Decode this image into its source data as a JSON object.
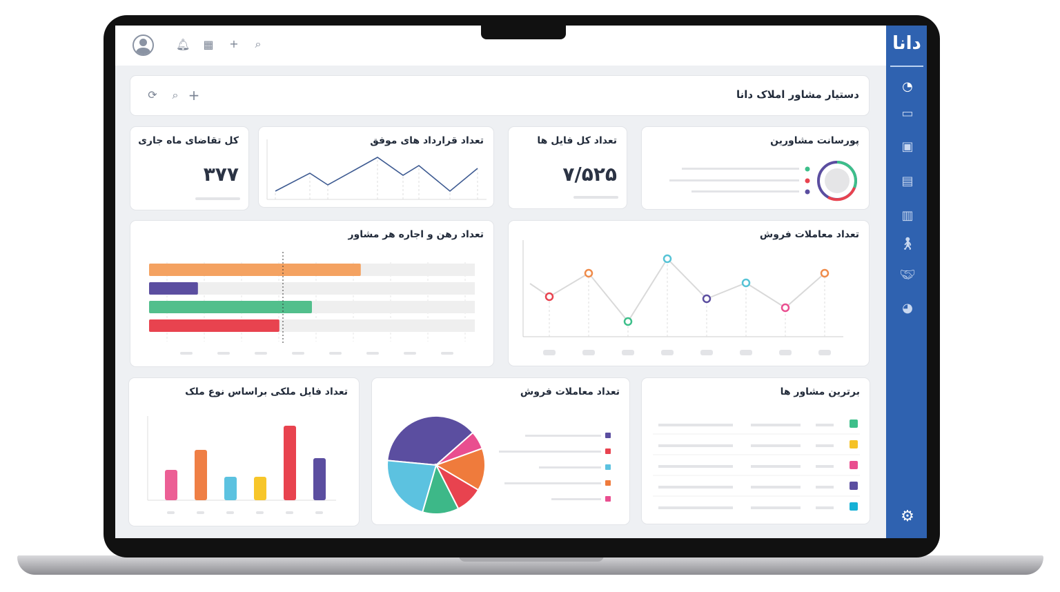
{
  "app": {
    "logo": "دانا",
    "title": "دستیار مشاور املاک دانا"
  },
  "topbar": {
    "icons": [
      "avatar-icon",
      "bell-icon",
      "calendar-icon",
      "plus-icon",
      "search-icon"
    ]
  },
  "toolbar": {
    "icons": [
      "refresh-icon",
      "search-icon",
      "plus-icon"
    ]
  },
  "sidebar": {
    "icons": [
      "dashboard-gauge-icon",
      "calendar-icon",
      "contacts-icon",
      "id-card-icon",
      "building-icon",
      "walking-person-icon",
      "handshake-icon",
      "pie-chart-icon"
    ],
    "settings_icon": "gear-icon"
  },
  "cards": {
    "requests": {
      "title": "کل تقاضای ماه جاری",
      "value": "۳۷۷"
    },
    "contracts": {
      "title": "تعداد قرارداد های موفق"
    },
    "files": {
      "title": "تعداد کل فایل ها",
      "value": "۷/۵۲۵"
    },
    "commission": {
      "title": "پورسانت مشاورین",
      "colors": [
        "#3dbf8a",
        "#e8434f",
        "#5b4ea0"
      ]
    },
    "rent": {
      "title": "تعداد رهن و اجاره هر مشاور"
    },
    "sales_line": {
      "title": "تعداد معاملات فروش"
    },
    "property_files": {
      "title": "تعداد فایل ملکی براساس نوع ملک"
    },
    "sales_pie": {
      "title": "تعداد معاملات فروش"
    },
    "top_agents": {
      "title": "برترین مشاور ها",
      "colors": [
        "#3dbf8a",
        "#f5c226",
        "#e94e8f",
        "#5b4ea0",
        "#16b1d6"
      ]
    }
  },
  "chart_data": [
    {
      "type": "line",
      "card": "contracts",
      "values": [
        12,
        38,
        21,
        61,
        35,
        49,
        12,
        45
      ],
      "color": "#3d5a91"
    },
    {
      "type": "bar",
      "card": "rent",
      "orientation": "horizontal",
      "values": [
        65,
        15,
        50,
        40
      ],
      "max": 100,
      "colors": [
        "#f4a261",
        "#5b4ea0",
        "#52bf8c",
        "#e8434f"
      ]
    },
    {
      "type": "line",
      "card": "sales_line",
      "values": [
        58,
        92,
        22,
        113,
        55,
        78,
        42,
        92
      ],
      "colors": [
        "#e8434f",
        "#ef8b4a",
        "#3dbf8a",
        "#56c3d6",
        "#5b4ea0",
        "#56c3d6",
        "#e94e8f",
        "#ef8b4a"
      ]
    },
    {
      "type": "bar",
      "card": "property_files",
      "values": [
        44,
        73,
        34,
        34,
        108,
        61
      ],
      "colors": [
        "#ec5f95",
        "#ef7f45",
        "#5cc2e0",
        "#f7c62a",
        "#e8434f",
        "#5b4ea0"
      ]
    },
    {
      "type": "pie",
      "card": "sales_pie",
      "values": [
        37,
        6,
        14,
        9,
        12,
        22
      ],
      "colors": [
        "#5b4ea0",
        "#e94e8f",
        "#ef7b3c",
        "#e8434f",
        "#3db888",
        "#5cc2e0"
      ]
    }
  ]
}
